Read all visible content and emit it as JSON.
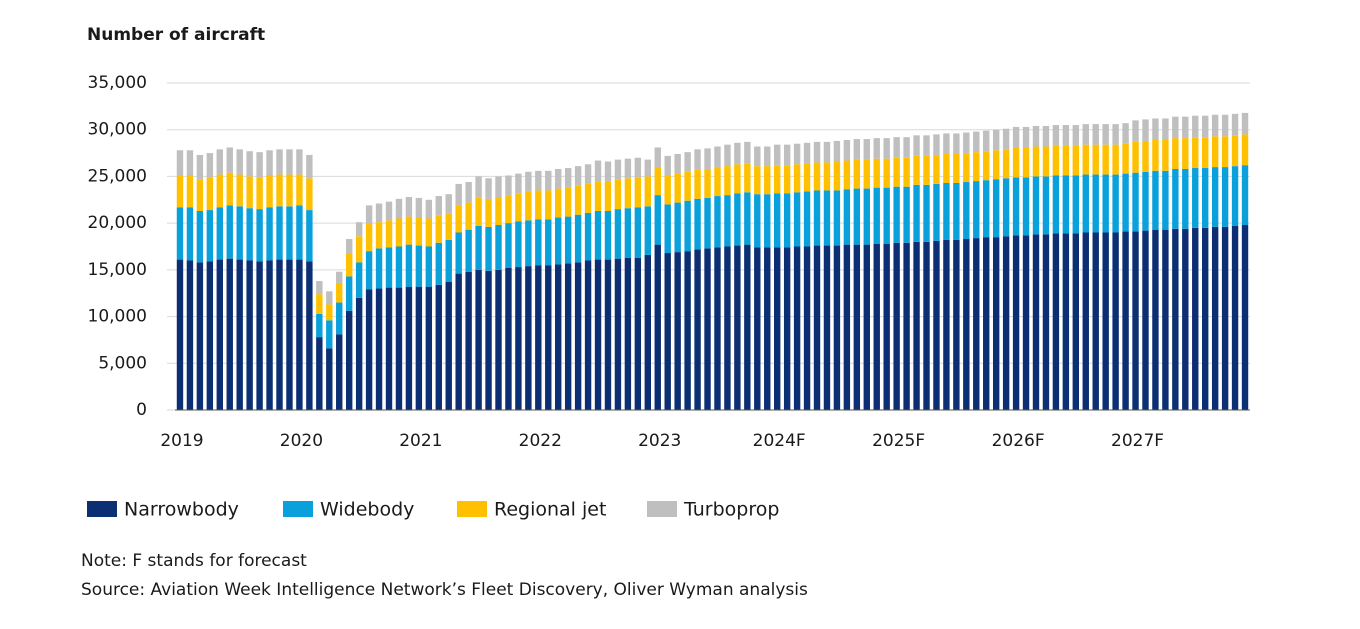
{
  "chart_data": {
    "type": "stacked_bar",
    "title": "Number of aircraft",
    "note": "Note: F stands for forecast",
    "source": "Source: Aviation Week Intelligence Network’s Fleet Discovery, Oliver Wyman analysis",
    "categories": [
      "2019",
      null,
      null,
      null,
      null,
      null,
      null,
      null,
      null,
      null,
      null,
      null,
      "2020",
      null,
      null,
      null,
      null,
      null,
      null,
      null,
      null,
      null,
      null,
      null,
      "2021",
      null,
      null,
      null,
      null,
      null,
      null,
      null,
      null,
      null,
      null,
      null,
      "2022",
      null,
      null,
      null,
      null,
      null,
      null,
      null,
      null,
      null,
      null,
      null,
      "2023",
      null,
      null,
      null,
      null,
      null,
      null,
      null,
      null,
      null,
      null,
      null,
      "2024F",
      null,
      null,
      null,
      null,
      null,
      null,
      null,
      null,
      null,
      null,
      null,
      "2025F",
      null,
      null,
      null,
      null,
      null,
      null,
      null,
      null,
      null,
      null,
      null,
      "2026F",
      null,
      null,
      null,
      null,
      null,
      null,
      null,
      null,
      null,
      null,
      null,
      "2027F",
      null,
      null,
      null,
      null,
      null,
      null,
      null,
      null,
      null,
      null,
      null
    ],
    "ylim": [
      0,
      35000
    ],
    "yticks": [
      0,
      {
        "value": 5000,
        "label": "5,000"
      },
      {
        "value": 10000,
        "label": "10,000"
      },
      {
        "value": 15000,
        "label": "15,000"
      },
      {
        "value": 20000,
        "label": "20,000"
      },
      {
        "value": 25000,
        "label": "25,000"
      },
      {
        "value": 30000,
        "label": "30,000"
      },
      {
        "value": 35000,
        "label": "35,000"
      }
    ],
    "grid": true,
    "legend": "bottom-left",
    "series": [
      {
        "name": "Narrowbody",
        "color": "#0c2f73",
        "values": [
          16100,
          16000,
          15800,
          15900,
          16100,
          16200,
          16100,
          16000,
          15900,
          16000,
          16100,
          16100,
          16100,
          15900,
          7800,
          6600,
          8100,
          10600,
          12000,
          12900,
          13000,
          13100,
          13100,
          13200,
          13200,
          13200,
          13400,
          13700,
          14600,
          14800,
          15000,
          14900,
          15000,
          15200,
          15300,
          15400,
          15500,
          15500,
          15600,
          15700,
          15800,
          16000,
          16100,
          16100,
          16200,
          16300,
          16300,
          16600,
          17700,
          16800,
          16900,
          17000,
          17200,
          17300,
          17400,
          17500,
          17600,
          17700,
          17400,
          17400,
          17400,
          17400,
          17500,
          17500,
          17600,
          17600,
          17600,
          17700,
          17700,
          17700,
          17800,
          17800,
          17900,
          17900,
          18000,
          18000,
          18100,
          18200,
          18200,
          18300,
          18400,
          18500,
          18500,
          18600,
          18700,
          18700,
          18800,
          18800,
          18900,
          18900,
          18900,
          19000,
          19000,
          19000,
          19000,
          19100,
          19100,
          19200,
          19300,
          19300,
          19400,
          19400,
          19500,
          19500,
          19600,
          19600,
          19700,
          19800
        ]
      },
      {
        "name": "Widebody",
        "color": "#0aa0dc",
        "values": [
          5600,
          5700,
          5500,
          5500,
          5600,
          5700,
          5700,
          5600,
          5600,
          5700,
          5700,
          5700,
          5800,
          5500,
          2500,
          3000,
          3400,
          3700,
          3800,
          4100,
          4300,
          4300,
          4400,
          4500,
          4400,
          4300,
          4500,
          4500,
          4400,
          4500,
          4700,
          4700,
          4800,
          4800,
          4900,
          4900,
          4900,
          4900,
          5000,
          5000,
          5100,
          5100,
          5200,
          5200,
          5300,
          5300,
          5400,
          5200,
          5300,
          5200,
          5300,
          5400,
          5400,
          5400,
          5500,
          5500,
          5600,
          5600,
          5700,
          5700,
          5800,
          5800,
          5800,
          5900,
          5900,
          5900,
          5900,
          5900,
          6000,
          6000,
          6000,
          6000,
          6000,
          6000,
          6100,
          6100,
          6100,
          6100,
          6100,
          6100,
          6100,
          6100,
          6200,
          6200,
          6200,
          6200,
          6200,
          6200,
          6200,
          6200,
          6200,
          6200,
          6200,
          6200,
          6200,
          6200,
          6300,
          6300,
          6300,
          6300,
          6400,
          6400,
          6400,
          6400,
          6400,
          6400,
          6400,
          6400
        ]
      },
      {
        "name": "Regional jet",
        "color": "#ffc000",
        "values": [
          3400,
          3400,
          3400,
          3500,
          3500,
          3500,
          3400,
          3400,
          3400,
          3400,
          3400,
          3400,
          3300,
          3400,
          2100,
          1700,
          2100,
          2400,
          2800,
          2900,
          2800,
          2900,
          3000,
          3000,
          3000,
          3000,
          2900,
          2800,
          2900,
          2900,
          3000,
          3000,
          3000,
          3000,
          3000,
          3100,
          3100,
          3100,
          3100,
          3100,
          3100,
          3100,
          3200,
          3200,
          3200,
          3200,
          3200,
          3200,
          3000,
          3100,
          3100,
          3100,
          3100,
          3100,
          3100,
          3100,
          3100,
          3100,
          3000,
          3000,
          3000,
          3000,
          3000,
          3000,
          3000,
          3000,
          3100,
          3100,
          3100,
          3100,
          3100,
          3100,
          3100,
          3100,
          3100,
          3100,
          3100,
          3100,
          3100,
          3100,
          3100,
          3100,
          3100,
          3100,
          3200,
          3200,
          3200,
          3200,
          3200,
          3200,
          3200,
          3200,
          3200,
          3200,
          3200,
          3200,
          3300,
          3300,
          3300,
          3300,
          3300,
          3300,
          3300,
          3300,
          3300,
          3300,
          3300,
          3300
        ]
      },
      {
        "name": "Turboprop",
        "color": "#bfbfbf",
        "values": [
          2700,
          2700,
          2600,
          2600,
          2700,
          2700,
          2700,
          2700,
          2700,
          2700,
          2700,
          2700,
          2700,
          2500,
          1400,
          1400,
          1200,
          1600,
          1500,
          2000,
          2000,
          2000,
          2100,
          2100,
          2100,
          2000,
          2100,
          2100,
          2300,
          2200,
          2300,
          2200,
          2200,
          2100,
          2100,
          2100,
          2100,
          2100,
          2100,
          2100,
          2100,
          2100,
          2200,
          2100,
          2100,
          2100,
          2100,
          1800,
          2100,
          2100,
          2100,
          2100,
          2200,
          2200,
          2200,
          2300,
          2300,
          2300,
          2100,
          2100,
          2200,
          2200,
          2200,
          2200,
          2200,
          2200,
          2200,
          2200,
          2200,
          2200,
          2200,
          2200,
          2200,
          2200,
          2200,
          2200,
          2200,
          2200,
          2200,
          2200,
          2200,
          2200,
          2200,
          2200,
          2200,
          2200,
          2200,
          2200,
          2200,
          2200,
          2200,
          2200,
          2200,
          2200,
          2200,
          2200,
          2300,
          2300,
          2300,
          2300,
          2300,
          2300,
          2300,
          2300,
          2300,
          2300,
          2300,
          2300
        ]
      }
    ]
  }
}
